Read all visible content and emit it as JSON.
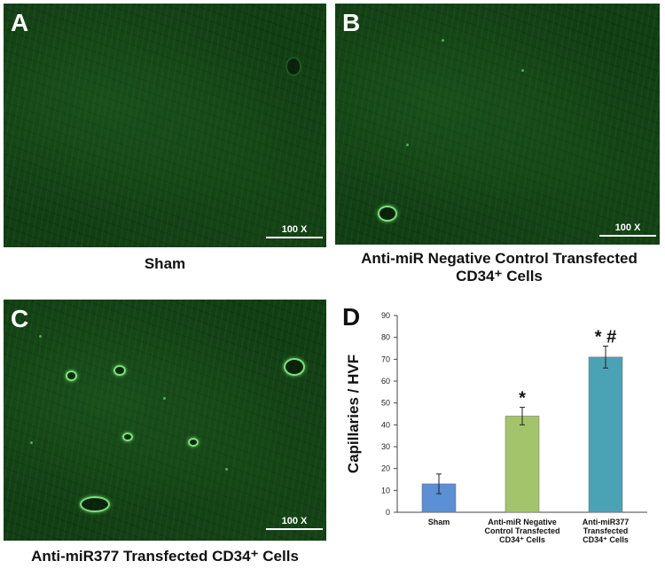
{
  "panels": {
    "a": {
      "letter": "A",
      "scale": "100 X",
      "caption": "Sham"
    },
    "b": {
      "letter": "B",
      "scale": "100 X",
      "caption_line1": "Anti-miR Negative Control Transfected",
      "caption_line2": "CD34⁺ Cells"
    },
    "c": {
      "letter": "C",
      "scale": "100 X",
      "caption": "Anti-miR377 Transfected CD34⁺ Cells"
    },
    "d": {
      "letter": "D"
    }
  },
  "chart_data": {
    "type": "bar",
    "ylabel": "Capillaries / HVF",
    "ylim": [
      0,
      90
    ],
    "yticks": [
      0,
      10,
      20,
      30,
      40,
      50,
      60,
      70,
      80,
      90
    ],
    "categories": [
      [
        "Sham"
      ],
      [
        "Anti-miR Negative",
        "Control Transfected",
        "CD34⁺ Cells"
      ],
      [
        "Anti-miR377",
        "Transfected",
        "CD34⁺ Cells"
      ]
    ],
    "values": [
      13,
      44,
      71
    ],
    "errors": [
      4.5,
      4,
      5
    ],
    "colors": [
      "#5b8fd6",
      "#a3c46a",
      "#4aa3b5"
    ],
    "annotations": [
      "",
      "*",
      "* #"
    ]
  }
}
